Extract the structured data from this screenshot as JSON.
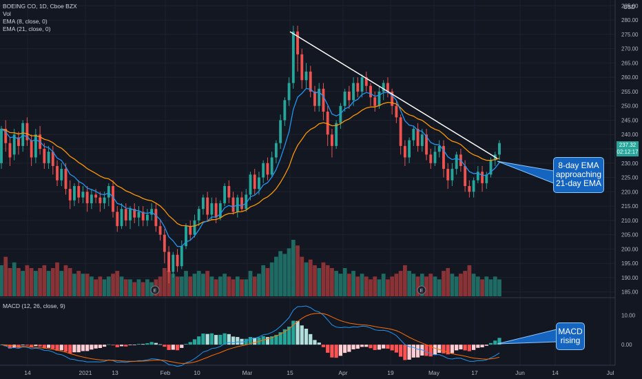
{
  "symbol": {
    "title": "BOEING CO, 1D, Cboe BZX",
    "vol": "Vol",
    "ema_fast": "EMA (8, close, 0)",
    "ema_slow": "EMA (21, close, 0)",
    "currency": "USD"
  },
  "macd_label": "MACD (12, 26, close, 9)",
  "price_tag": {
    "price": "237.32",
    "countdown": "02:12:17"
  },
  "callouts": [
    {
      "lines": [
        "8-day EMA",
        "approaching",
        "21-day EMA"
      ]
    },
    {
      "lines": [
        "MACD",
        "rising"
      ]
    }
  ],
  "colors": {
    "up": "#26a69a",
    "down": "#ef5350",
    "ema_fast": "#2196f3",
    "ema_slow": "#ff9800",
    "callout": "#1565c0",
    "background": "#131722"
  },
  "earnings_markers": [
    "E",
    "E"
  ],
  "chart_data": {
    "type": "candlestick",
    "price_axis": {
      "ticks": [
        "285.00",
        "280.00",
        "275.00",
        "270.00",
        "265.00",
        "260.00",
        "255.00",
        "250.00",
        "245.00",
        "240.00",
        "235.00",
        "230.00",
        "225.00",
        "220.00",
        "215.00",
        "210.00",
        "205.00",
        "200.00",
        "195.00",
        "190.00",
        "185.00"
      ],
      "ylim": [
        183,
        287
      ]
    },
    "macd_axis": {
      "ticks": [
        "10.00",
        "0.00"
      ],
      "ylim": [
        -7,
        16
      ]
    },
    "x_tick_labels": [
      "14",
      "2021",
      "13",
      "Feb",
      "10",
      "Mar",
      "15",
      "Apr",
      "19",
      "May",
      "17",
      "Jun",
      "14",
      "Jul"
    ],
    "candles": [
      [
        230,
        242,
        243,
        228
      ],
      [
        242,
        237,
        245,
        234
      ],
      [
        237,
        232,
        239,
        229
      ],
      [
        233,
        240,
        242,
        231
      ],
      [
        239,
        236,
        241,
        233
      ],
      [
        236,
        244,
        245,
        234
      ],
      [
        244,
        238,
        246,
        236
      ],
      [
        238,
        232,
        240,
        229
      ],
      [
        232,
        240,
        242,
        230
      ],
      [
        240,
        235,
        243,
        233
      ],
      [
        235,
        230,
        237,
        228
      ],
      [
        230,
        234,
        236,
        228
      ],
      [
        234,
        229,
        236,
        226
      ],
      [
        229,
        224,
        231,
        222
      ],
      [
        224,
        228,
        230,
        222
      ],
      [
        228,
        221,
        230,
        219
      ],
      [
        221,
        217,
        224,
        214
      ],
      [
        217,
        222,
        223,
        215
      ],
      [
        222,
        218,
        224,
        216
      ],
      [
        218,
        220,
        222,
        216
      ],
      [
        220,
        216,
        222,
        213
      ],
      [
        216,
        219,
        221,
        214
      ],
      [
        219,
        218,
        221,
        216
      ],
      [
        218,
        216,
        220,
        213
      ],
      [
        216,
        218,
        220,
        214
      ],
      [
        218,
        222,
        223,
        215
      ],
      [
        222,
        213,
        224,
        211
      ],
      [
        213,
        208,
        215,
        206
      ],
      [
        208,
        214,
        216,
        207
      ],
      [
        214,
        210,
        216,
        208
      ],
      [
        210,
        214,
        215,
        207
      ],
      [
        214,
        211,
        216,
        209
      ],
      [
        211,
        213,
        215,
        208
      ],
      [
        213,
        210,
        215,
        208
      ],
      [
        210,
        212,
        214,
        208
      ],
      [
        212,
        214,
        216,
        210
      ],
      [
        214,
        208,
        216,
        206
      ],
      [
        208,
        205,
        210,
        203
      ],
      [
        205,
        199,
        207,
        195
      ],
      [
        199,
        192,
        201,
        188
      ],
      [
        192,
        198,
        199,
        190
      ],
      [
        198,
        194,
        200,
        192
      ],
      [
        194,
        201,
        203,
        193
      ],
      [
        201,
        208,
        209,
        200
      ],
      [
        208,
        205,
        210,
        203
      ],
      [
        205,
        210,
        212,
        204
      ],
      [
        210,
        214,
        215,
        208
      ],
      [
        214,
        218,
        219,
        212
      ],
      [
        218,
        212,
        220,
        210
      ],
      [
        212,
        216,
        218,
        210
      ],
      [
        216,
        211,
        218,
        209
      ],
      [
        211,
        216,
        217,
        210
      ],
      [
        216,
        222,
        223,
        215
      ],
      [
        222,
        218,
        224,
        216
      ],
      [
        218,
        213,
        220,
        212
      ],
      [
        213,
        218,
        219,
        211
      ],
      [
        218,
        214,
        220,
        213
      ],
      [
        214,
        219,
        221,
        213
      ],
      [
        219,
        226,
        227,
        217
      ],
      [
        226,
        221,
        228,
        219
      ],
      [
        221,
        225,
        227,
        219
      ],
      [
        225,
        230,
        231,
        223
      ],
      [
        230,
        226,
        232,
        224
      ],
      [
        226,
        232,
        234,
        225
      ],
      [
        232,
        237,
        238,
        230
      ],
      [
        237,
        245,
        247,
        235
      ],
      [
        245,
        252,
        253,
        243
      ],
      [
        252,
        258,
        260,
        250
      ],
      [
        258,
        276,
        278,
        256
      ],
      [
        276,
        268,
        278,
        262
      ],
      [
        268,
        259,
        270,
        256
      ],
      [
        259,
        262,
        265,
        256
      ],
      [
        262,
        255,
        264,
        253
      ],
      [
        255,
        250,
        257,
        248
      ],
      [
        250,
        256,
        258,
        248
      ],
      [
        256,
        248,
        258,
        245
      ],
      [
        248,
        240,
        250,
        236
      ],
      [
        240,
        236,
        242,
        232
      ],
      [
        236,
        244,
        245,
        235
      ],
      [
        244,
        250,
        251,
        242
      ],
      [
        250,
        255,
        256,
        248
      ],
      [
        255,
        252,
        257,
        249
      ],
      [
        252,
        258,
        260,
        250
      ],
      [
        258,
        255,
        260,
        253
      ],
      [
        255,
        260,
        261,
        253
      ],
      [
        260,
        257,
        262,
        255
      ],
      [
        257,
        253,
        258,
        250
      ],
      [
        253,
        250,
        255,
        248
      ],
      [
        250,
        255,
        257,
        249
      ],
      [
        255,
        258,
        259,
        252
      ],
      [
        258,
        255,
        260,
        253
      ],
      [
        255,
        250,
        256,
        247
      ],
      [
        250,
        246,
        252,
        244
      ],
      [
        246,
        236,
        247,
        233
      ],
      [
        236,
        232,
        238,
        229
      ],
      [
        232,
        238,
        239,
        230
      ],
      [
        238,
        242,
        243,
        236
      ],
      [
        242,
        236,
        244,
        234
      ],
      [
        236,
        240,
        242,
        234
      ],
      [
        240,
        233,
        242,
        231
      ],
      [
        233,
        230,
        235,
        228
      ],
      [
        230,
        234,
        236,
        229
      ],
      [
        234,
        236,
        238,
        232
      ],
      [
        236,
        228,
        238,
        225
      ],
      [
        228,
        224,
        230,
        221
      ],
      [
        224,
        228,
        230,
        222
      ],
      [
        228,
        233,
        234,
        226
      ],
      [
        233,
        229,
        235,
        227
      ],
      [
        229,
        222,
        231,
        220
      ],
      [
        222,
        220,
        224,
        218
      ],
      [
        220,
        224,
        225,
        218
      ],
      [
        224,
        227,
        229,
        223
      ],
      [
        227,
        223,
        229,
        220
      ],
      [
        223,
        226,
        227,
        221
      ],
      [
        226,
        231,
        232,
        225
      ],
      [
        231,
        233,
        234,
        229
      ],
      [
        233,
        237,
        238,
        231
      ]
    ],
    "volume_relative": [
      0.55,
      0.7,
      0.5,
      0.6,
      0.5,
      0.45,
      0.55,
      0.5,
      0.45,
      0.5,
      0.55,
      0.45,
      0.5,
      0.6,
      0.45,
      0.55,
      0.5,
      0.4,
      0.45,
      0.4,
      0.4,
      0.35,
      0.3,
      0.35,
      0.3,
      0.35,
      0.4,
      0.45,
      0.35,
      0.3,
      0.3,
      0.25,
      0.3,
      0.25,
      0.3,
      0.25,
      0.3,
      0.35,
      0.5,
      0.45,
      0.4,
      0.35,
      0.35,
      0.45,
      0.35,
      0.4,
      0.45,
      0.4,
      0.45,
      0.35,
      0.3,
      0.35,
      0.4,
      0.35,
      0.3,
      0.35,
      0.3,
      0.3,
      0.45,
      0.35,
      0.4,
      0.55,
      0.5,
      0.6,
      0.7,
      0.8,
      0.75,
      0.85,
      1.0,
      0.9,
      0.7,
      0.6,
      0.65,
      0.55,
      0.5,
      0.6,
      0.55,
      0.5,
      0.45,
      0.4,
      0.5,
      0.4,
      0.45,
      0.35,
      0.4,
      0.35,
      0.3,
      0.35,
      0.3,
      0.4,
      0.3,
      0.35,
      0.4,
      0.45,
      0.55,
      0.45,
      0.4,
      0.35,
      0.4,
      0.35,
      0.4,
      0.35,
      0.3,
      0.45,
      0.5,
      0.4,
      0.35,
      0.4,
      0.45,
      0.55,
      0.4,
      0.35,
      0.3,
      0.35,
      0.3,
      0.35,
      0.3
    ]
  }
}
